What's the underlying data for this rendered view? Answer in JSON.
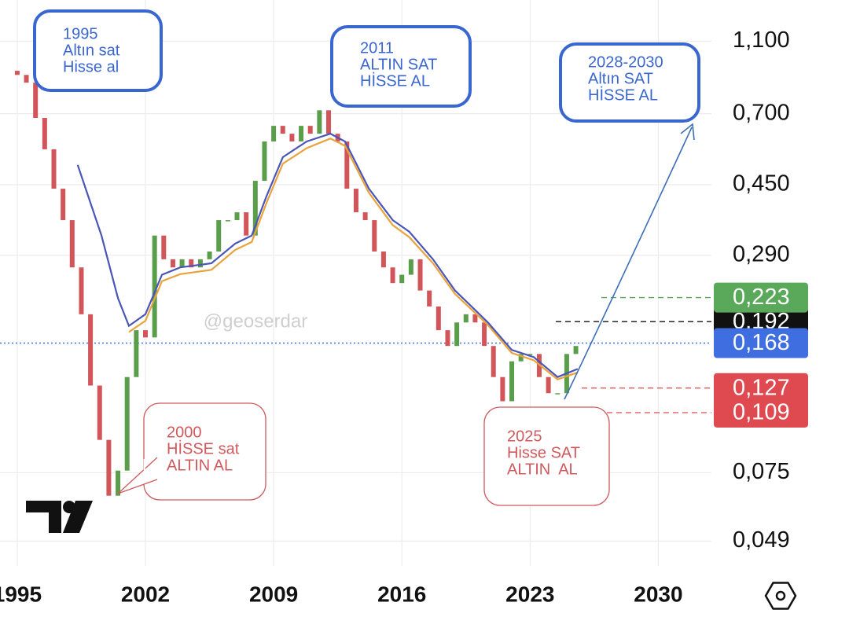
{
  "chart_data": {
    "type": "candlestick",
    "watermark": "@geoserdar",
    "log_scale": true,
    "grid": true,
    "up_color": "#5a9e4c",
    "down_color": "#d2555a",
    "xlim": [
      1994.06,
      2032.9
    ],
    "ylim": [
      0.042,
      1.42
    ],
    "xticks": [
      1995,
      2002,
      2009,
      2016,
      2023,
      2030
    ],
    "yticks": [
      {
        "value": 1.1,
        "label": "1,100"
      },
      {
        "value": 0.7,
        "label": "0,700"
      },
      {
        "value": 0.45,
        "label": "0,450"
      },
      {
        "value": 0.29,
        "label": "0,290"
      },
      {
        "value": 0.075,
        "label": "0,075"
      },
      {
        "value": 0.049,
        "label": "0,049"
      }
    ],
    "x": [
      1995.0,
      1995.5,
      1996.0,
      1996.5,
      1997.0,
      1997.5,
      1998.0,
      1998.5,
      1999.0,
      1999.5,
      2000.0,
      2000.5,
      2001.0,
      2001.5,
      2002.0,
      2002.5,
      2003.0,
      2003.5,
      2004.0,
      2004.5,
      2005.0,
      2005.5,
      2006.0,
      2006.5,
      2007.0,
      2007.5,
      2008.0,
      2008.5,
      2009.0,
      2009.5,
      2010.0,
      2010.5,
      2011.0,
      2011.5,
      2012.0,
      2012.5,
      2013.0,
      2013.5,
      2014.0,
      2014.5,
      2015.0,
      2015.5,
      2016.0,
      2016.5,
      2017.0,
      2017.5,
      2018.0,
      2018.5,
      2019.0,
      2019.5,
      2020.0,
      2020.5,
      2021.0,
      2021.5,
      2022.0,
      2022.5,
      2023.0,
      2023.5,
      2024.0,
      2024.5,
      2025.0,
      2025.5
    ],
    "open": [
      0.914,
      0.891,
      0.849,
      0.682,
      0.561,
      0.439,
      0.361,
      0.269,
      0.201,
      0.129,
      0.092,
      0.065,
      0.076,
      0.136,
      0.182,
      0.174,
      0.328,
      0.283,
      0.269,
      0.283,
      0.269,
      0.283,
      0.297,
      0.361,
      0.361,
      0.379,
      0.328,
      0.461,
      0.589,
      0.649,
      0.618,
      0.589,
      0.649,
      0.618,
      0.715,
      0.618,
      0.589,
      0.439,
      0.379,
      0.361,
      0.297,
      0.269,
      0.244,
      0.257,
      0.283,
      0.233,
      0.211,
      0.182,
      0.165,
      0.191,
      0.201,
      0.191,
      0.165,
      0.136,
      0.117,
      0.15,
      0.157,
      0.157,
      0.136,
      0.123,
      0.123,
      0.157
    ],
    "close": [
      0.891,
      0.849,
      0.682,
      0.561,
      0.439,
      0.361,
      0.269,
      0.201,
      0.129,
      0.092,
      0.065,
      0.076,
      0.136,
      0.182,
      0.174,
      0.328,
      0.283,
      0.269,
      0.283,
      0.269,
      0.283,
      0.297,
      0.361,
      0.361,
      0.379,
      0.328,
      0.461,
      0.589,
      0.649,
      0.618,
      0.589,
      0.649,
      0.618,
      0.715,
      0.618,
      0.589,
      0.439,
      0.379,
      0.361,
      0.297,
      0.269,
      0.244,
      0.257,
      0.283,
      0.233,
      0.211,
      0.182,
      0.165,
      0.191,
      0.201,
      0.191,
      0.165,
      0.136,
      0.117,
      0.15,
      0.157,
      0.157,
      0.136,
      0.123,
      0.123,
      0.157,
      0.165
    ],
    "lines": [
      {
        "color": "#e8a33c",
        "x": [
          2001.1,
          2002.0,
          2002.9,
          2003.9,
          2005.6,
          2006.9,
          2007.8,
          2008.6,
          2009.5,
          2010.8,
          2012.1,
          2012.9,
          2014.2,
          2015.5,
          2016.4,
          2017.7,
          2018.9,
          2019.8,
          2020.7,
          2022.0,
          2023.2,
          2024.5,
          2025.6
        ],
        "values": [
          0.18,
          0.193,
          0.247,
          0.258,
          0.265,
          0.3,
          0.315,
          0.401,
          0.513,
          0.565,
          0.6,
          0.573,
          0.428,
          0.35,
          0.325,
          0.276,
          0.228,
          0.207,
          0.188,
          0.158,
          0.151,
          0.134,
          0.14
        ]
      },
      {
        "color": "#4a55b8",
        "x": [
          1998.3,
          1999.6,
          2000.5,
          2001.1,
          2002.0,
          2002.9,
          2003.9,
          2005.6,
          2006.9,
          2007.8,
          2008.6,
          2009.5,
          2010.8,
          2012.1,
          2012.9,
          2014.2,
          2015.5,
          2016.4,
          2017.7,
          2018.9,
          2019.8,
          2020.7,
          2022.0,
          2023.2,
          2024.5,
          2025.6
        ],
        "values": [
          0.509,
          0.328,
          0.222,
          0.187,
          0.201,
          0.257,
          0.269,
          0.276,
          0.312,
          0.328,
          0.418,
          0.534,
          0.589,
          0.618,
          0.589,
          0.439,
          0.361,
          0.336,
          0.283,
          0.233,
          0.211,
          0.191,
          0.161,
          0.154,
          0.136,
          0.143
        ]
      }
    ],
    "current_price": 0.168,
    "price_labels": [
      {
        "value": 0.223,
        "label": "0,223",
        "color": "#5aa85a"
      },
      {
        "value": 0.192,
        "label": "0,192",
        "color": "#111111"
      },
      {
        "value": 0.168,
        "label": "0,168",
        "color": "#3f6ee0"
      },
      {
        "value": 0.127,
        "label": "0,127",
        "color": "#de4a4f"
      },
      {
        "value": 0.109,
        "label": "0,109",
        "color": "#de4a4f"
      }
    ],
    "annotations": [
      {
        "lines": [
          "1995",
          "Altın sat",
          "Hisse al"
        ],
        "color": "#3a66d0"
      },
      {
        "lines": [
          "2011",
          "ALTIN SAT",
          "HİSSE AL"
        ],
        "color": "#3a66d0"
      },
      {
        "lines": [
          "2028-2030",
          "Altın SAT",
          "HİSSE AL"
        ],
        "color": "#3a66d0"
      },
      {
        "lines": [
          "2000",
          "HİSSE sat",
          "ALTIN AL"
        ],
        "color": "#d0595d"
      },
      {
        "lines": [
          "2025",
          "Hisse SAT",
          "ALTIN  AL"
        ],
        "color": "#d0595d"
      }
    ]
  }
}
